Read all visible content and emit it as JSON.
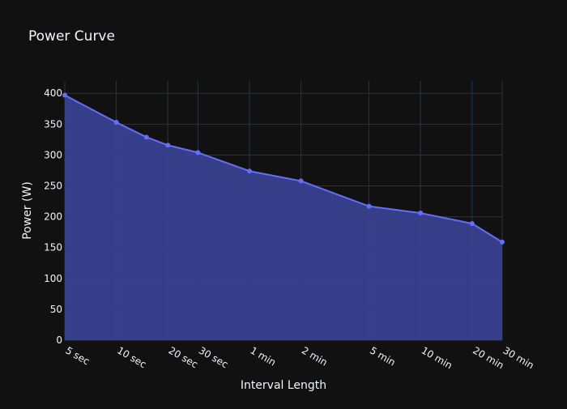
{
  "chart_data": {
    "type": "area",
    "title": "Power Curve",
    "xlabel": "Interval Length",
    "ylabel": "Power (W)",
    "x_scale": "log",
    "x": [
      5,
      10,
      15,
      20,
      30,
      60,
      120,
      300,
      600,
      1200,
      1800
    ],
    "x_ticks": [
      {
        "value": 5,
        "label": "5 sec"
      },
      {
        "value": 10,
        "label": "10 sec"
      },
      {
        "value": 20,
        "label": "20 sec"
      },
      {
        "value": 30,
        "label": "30 sec"
      },
      {
        "value": 60,
        "label": "1 min"
      },
      {
        "value": 120,
        "label": "2 min"
      },
      {
        "value": 300,
        "label": "5 min"
      },
      {
        "value": 600,
        "label": "10 min"
      },
      {
        "value": 1200,
        "label": "20 min"
      },
      {
        "value": 1800,
        "label": "30 min"
      }
    ],
    "y_ticks": [
      0,
      50,
      100,
      150,
      200,
      250,
      300,
      350,
      400
    ],
    "ylim": [
      0,
      420
    ],
    "grid": true,
    "series": [
      {
        "values": [
          397,
          353,
          329,
          316,
          304,
          274,
          258,
          217,
          206,
          189,
          159
        ]
      }
    ],
    "colors": {
      "background": "#111111",
      "grid": "#283442",
      "line": "#636efa",
      "fill": "#3a4190",
      "text": "#f2f5fa"
    }
  }
}
